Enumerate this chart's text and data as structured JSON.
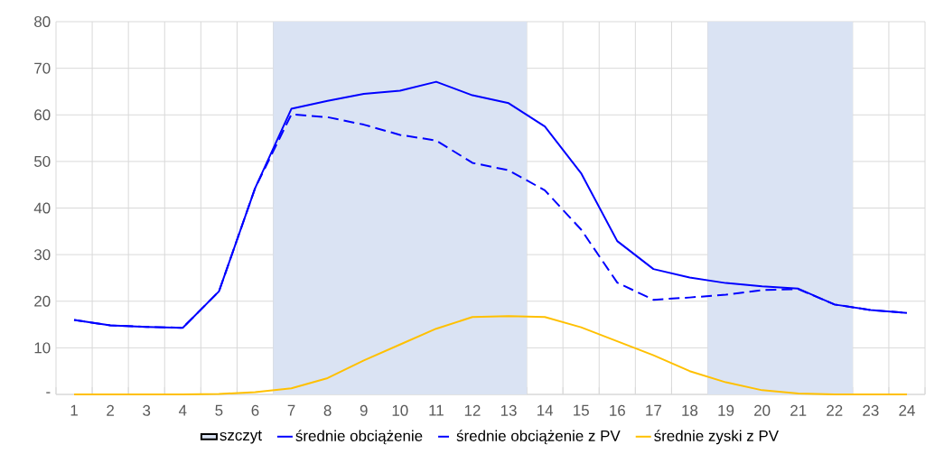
{
  "chart_data": {
    "type": "line",
    "categories": [
      "1",
      "2",
      "3",
      "4",
      "5",
      "6",
      "7",
      "8",
      "9",
      "10",
      "11",
      "12",
      "13",
      "14",
      "15",
      "16",
      "17",
      "18",
      "19",
      "20",
      "21",
      "22",
      "23",
      "24"
    ],
    "series": [
      {
        "name": "średnie obciążenie",
        "line_style": "solid",
        "color": "#0000ff",
        "values": [
          16.0,
          14.8,
          14.5,
          14.3,
          22.1,
          44.3,
          61.3,
          63.0,
          64.5,
          65.2,
          67.1,
          64.2,
          62.5,
          57.5,
          47.5,
          32.9,
          26.9,
          25.1,
          23.9,
          23.2,
          22.7,
          19.3,
          18.1,
          17.5
        ]
      },
      {
        "name": "średnie obciążenie z PV",
        "line_style": "dashed",
        "color": "#0000ff",
        "values": [
          16.0,
          14.8,
          14.5,
          14.3,
          22.1,
          44.3,
          60.1,
          59.5,
          57.9,
          55.7,
          54.5,
          49.7,
          48.1,
          43.8,
          35.4,
          24.0,
          20.3,
          20.8,
          21.4,
          22.4,
          22.6,
          19.3,
          18.1,
          17.5
        ]
      },
      {
        "name": "średnie zyski z PV",
        "line_style": "solid",
        "color": "#ffc000",
        "values": [
          0,
          0,
          0,
          0,
          0.1,
          0.5,
          1.3,
          3.5,
          7.3,
          10.7,
          14.1,
          16.6,
          16.8,
          16.6,
          14.4,
          11.4,
          8.4,
          5.0,
          2.6,
          0.9,
          0.2,
          0,
          0,
          0
        ]
      }
    ],
    "bands": [
      {
        "axis": "x",
        "from": "7",
        "to": "13",
        "label": "szczyt",
        "color": "#dae3f3"
      },
      {
        "axis": "x",
        "from": "19",
        "to": "22",
        "color": "#dae3f3"
      }
    ],
    "ylim": [
      0,
      80
    ],
    "yticks": [
      {
        "value": 0,
        "label": "-"
      },
      10,
      20,
      30,
      40,
      50,
      60,
      70,
      80
    ],
    "grid": true,
    "legend": "bottom"
  }
}
